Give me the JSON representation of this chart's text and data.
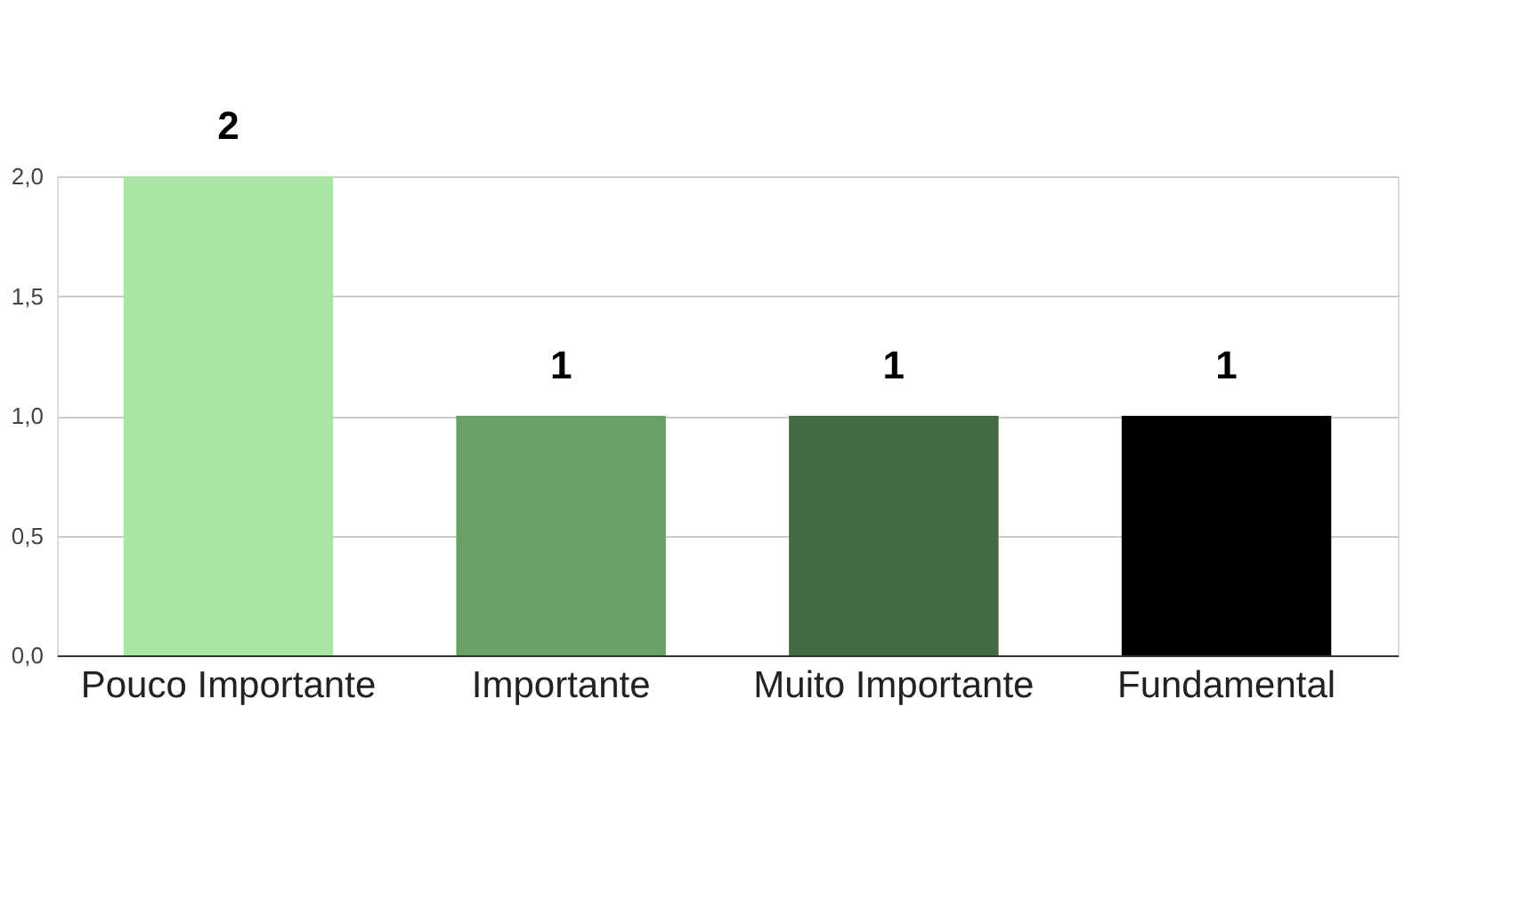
{
  "chart_data": {
    "type": "bar",
    "categories": [
      "Pouco Importante",
      "Importante",
      "Muito Importante",
      "Fundamental"
    ],
    "values": [
      2,
      1,
      1,
      1
    ],
    "colors": [
      "#aae6a3",
      "#68a065",
      "#436a43",
      "#000000"
    ],
    "ylim": [
      0,
      2
    ],
    "yticks": [
      {
        "value": 0,
        "label": "0,0"
      },
      {
        "value": 0.5,
        "label": "0,5"
      },
      {
        "value": 1,
        "label": "1,0"
      },
      {
        "value": 1.5,
        "label": "1,5"
      },
      {
        "value": 2,
        "label": "2,0"
      }
    ],
    "grid": "y",
    "data_labels": true
  }
}
